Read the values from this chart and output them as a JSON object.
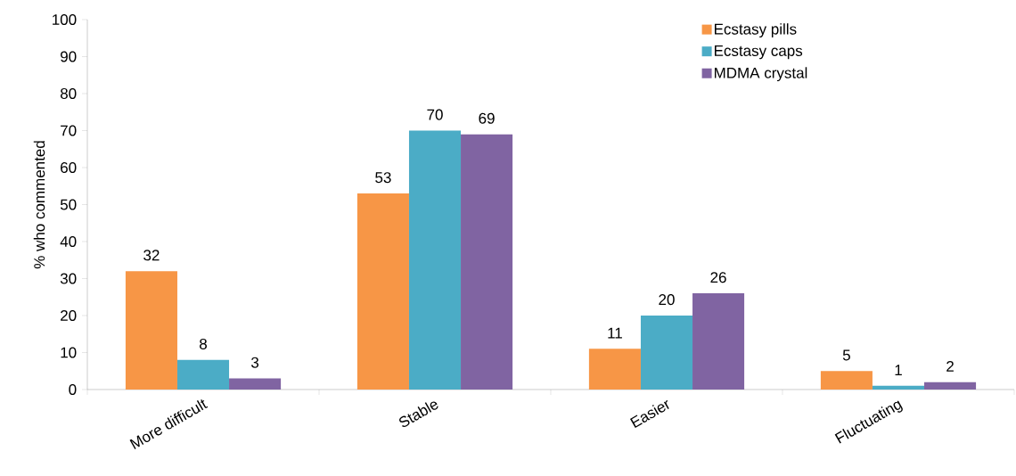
{
  "chart_data": {
    "type": "bar",
    "ylabel": "% who commented",
    "categories": [
      "More difficult",
      "Stable",
      "Easier",
      "Fluctuating"
    ],
    "series": [
      {
        "name": "Ecstasy pills",
        "color": "#f79646",
        "values": [
          32,
          53,
          11,
          5
        ]
      },
      {
        "name": "Ecstasy caps",
        "color": "#4bacc6",
        "values": [
          8,
          70,
          20,
          1
        ]
      },
      {
        "name": "MDMA crystal",
        "color": "#8064a2",
        "values": [
          3,
          69,
          26,
          2
        ]
      }
    ],
    "ylim": [
      0,
      100
    ],
    "yticks": [
      0,
      10,
      20,
      30,
      40,
      50,
      60,
      70,
      80,
      90,
      100
    ],
    "data_labels": true,
    "legend": "top right",
    "grid": false
  }
}
